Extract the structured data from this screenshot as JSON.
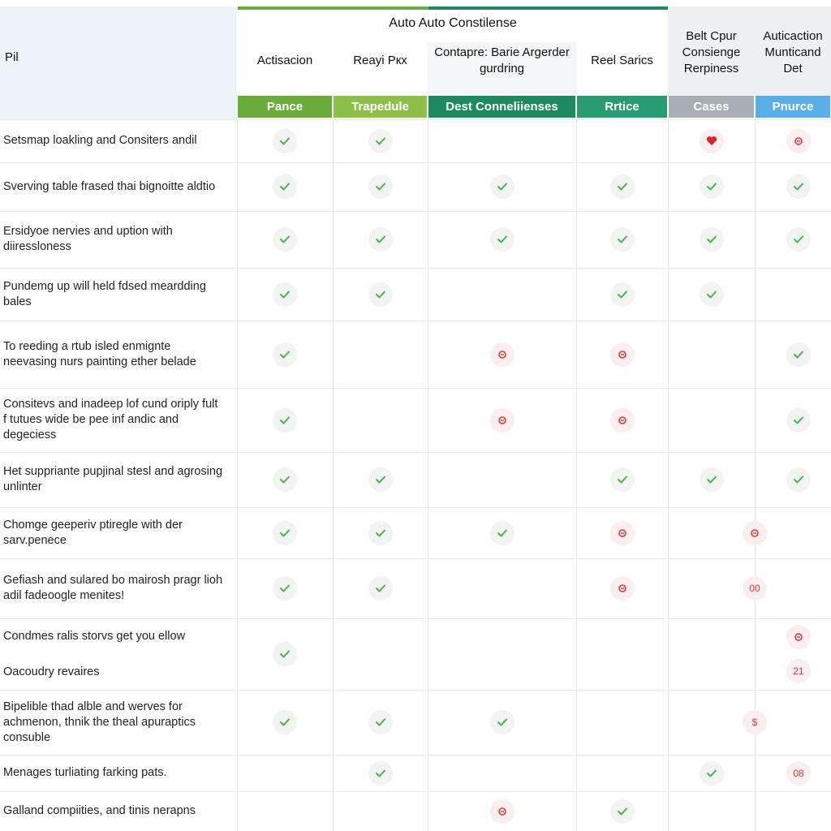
{
  "table": {
    "corner": "Pil",
    "group_title": "Auto Auto Constilense",
    "columns": [
      {
        "title": "Actisacion",
        "band": "Pance"
      },
      {
        "title": "Reayi Pкx",
        "band": "Trapedule"
      },
      {
        "title": "Contapre: Barie Argerder gurdring",
        "band": "Dest Conneliienses"
      },
      {
        "title": "Reel Sarics",
        "band": "Rrtice"
      },
      {
        "title": "Belt Cpur Consienge Rerpiness",
        "band": "Cases"
      },
      {
        "title": "Auticaction Munticand Det",
        "band": "Pnurce"
      }
    ],
    "rows": [
      {
        "label": "Setsmap loakling and Consiters andil"
      },
      {
        "label": "Sverving table frased thai bignoitte aldtio"
      },
      {
        "label": "Ersidyoe nervies and uption with diiressloness"
      },
      {
        "label": "Pundemg up will held fdsed meardding bales"
      },
      {
        "label": "To reeding a rtub isled enmignte neevasing nurs painting ether belade"
      },
      {
        "label": "Consitevs and inadeep lof cund oriply fult f tutues wide be pee inf andic and degeciess"
      },
      {
        "label": "Het suppriante pupjinal stesl and agrosing unlinter"
      },
      {
        "label": "Chomge geeperiv ptiregle with der sarv.penece"
      },
      {
        "label": "Gefiash and sulared bo mairosh pragr lioh adil fadeoogle menites!",
        "badge": "00"
      },
      {
        "label": "Condmes ralis storvs get you ellow",
        "note": "Oacoudry revaires",
        "badge": "21"
      },
      {
        "label": "Bipelible thad alble and werves for achmenon, thnik the theal apuraptics consuble",
        "badge": "$"
      },
      {
        "label": "Menages turliating farking pats.",
        "badge": "08"
      },
      {
        "label": "Galland compiities, and tinis nerapns"
      }
    ]
  }
}
